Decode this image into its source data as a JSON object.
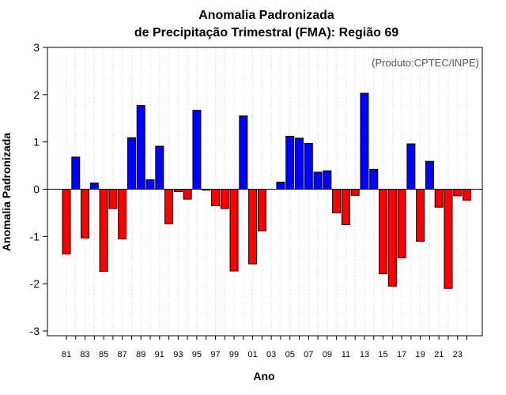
{
  "chart_data": {
    "type": "bar",
    "title": "Anomalia Padronizada",
    "subtitle": "de Precipitação Trimestral (FMA): Região 69",
    "xlabel": "Ano",
    "ylabel": "Anomalia Padronizada",
    "annotation": "(Produto:CPTEC/INPE)",
    "ylim": [
      -3.1,
      3.0
    ],
    "yticks": [
      -3,
      -2,
      -1,
      0,
      1,
      2,
      3
    ],
    "categories": [
      "81",
      "82",
      "83",
      "84",
      "85",
      "86",
      "87",
      "88",
      "89",
      "90",
      "91",
      "92",
      "93",
      "94",
      "95",
      "96",
      "97",
      "98",
      "99",
      "00",
      "01",
      "02",
      "03",
      "04",
      "05",
      "06",
      "07",
      "08",
      "09",
      "10",
      "11",
      "12",
      "13",
      "14",
      "15",
      "16",
      "17",
      "18",
      "19",
      "20",
      "21",
      "22",
      "23",
      "24"
    ],
    "tick_labels": [
      "81",
      "83",
      "85",
      "87",
      "89",
      "91",
      "93",
      "95",
      "97",
      "99",
      "01",
      "03",
      "05",
      "07",
      "09",
      "11",
      "13",
      "15",
      "17",
      "19",
      "21",
      "23"
    ],
    "values": [
      -1.37,
      0.68,
      -1.03,
      0.13,
      -1.74,
      -0.41,
      -1.05,
      1.09,
      1.77,
      0.2,
      0.91,
      -0.73,
      -0.05,
      -0.21,
      1.67,
      -0.02,
      -0.35,
      -0.41,
      -1.73,
      1.55,
      -1.58,
      -0.88,
      0.0,
      0.15,
      1.12,
      1.08,
      0.97,
      0.36,
      0.39,
      -0.5,
      -0.75,
      -0.13,
      2.03,
      0.42,
      -1.79,
      -2.05,
      -1.45,
      0.96,
      -1.1,
      0.59,
      -0.38,
      -2.1,
      -0.14,
      -0.23
    ],
    "grid": true,
    "colors": {
      "positive": "#0000ff",
      "negative": "#ff0000",
      "grid": "#d3d3d3"
    }
  }
}
